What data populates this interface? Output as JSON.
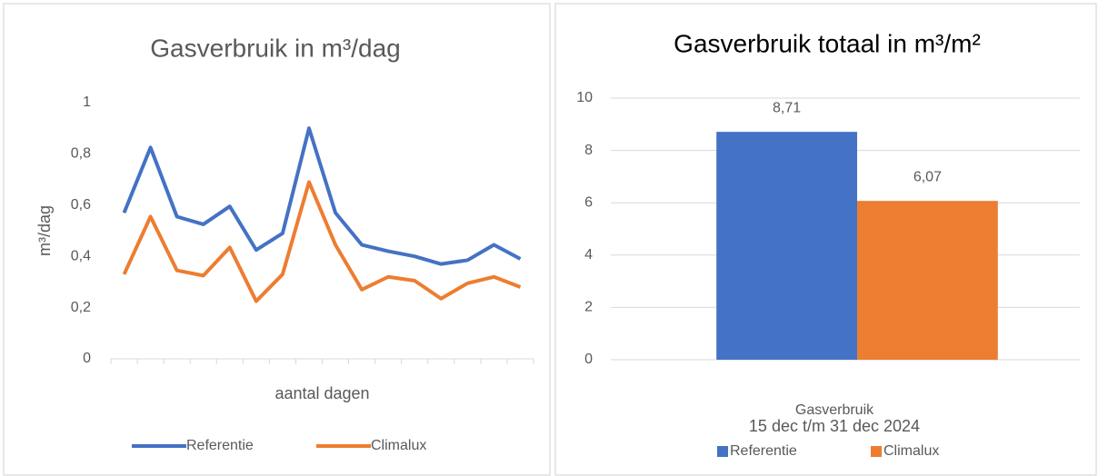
{
  "chart_data": [
    {
      "type": "line",
      "title": "Gasverbruik in m³/dag",
      "x_label": "aantal dagen",
      "y_label": "m³/dag",
      "categories": [
        null,
        null,
        null,
        null,
        null,
        null,
        null,
        null,
        null,
        null,
        null,
        null,
        null,
        null,
        null,
        null
      ],
      "series": [
        {
          "name": "Referentie",
          "color": "#4472c4",
          "values": [
            0.57,
            0.825,
            0.555,
            0.525,
            0.595,
            0.425,
            0.49,
            0.9,
            0.57,
            0.445,
            0.42,
            0.4,
            0.37,
            0.385,
            0.445,
            0.39
          ]
        },
        {
          "name": "Climalux",
          "color": "#ed7d31",
          "values": [
            0.33,
            0.555,
            0.345,
            0.325,
            0.435,
            0.225,
            0.33,
            0.69,
            0.445,
            0.27,
            0.32,
            0.305,
            0.235,
            0.295,
            0.32,
            0.28
          ]
        }
      ],
      "ylim": [
        0,
        1
      ],
      "yticks": [
        0,
        {
          "value": 0.2,
          "label": "0,2"
        },
        {
          "value": 0.4,
          "label": "0,4"
        },
        {
          "value": 0.6,
          "label": "0,6"
        },
        {
          "value": 0.8,
          "label": "0,8"
        },
        1
      ],
      "grid": false,
      "legend": "bottom"
    },
    {
      "type": "bar",
      "title": "Gasverbruik totaal in m³/m²",
      "x_label": "15 dec t/m 31 dec 2024",
      "categories": [
        "Gasverbruik"
      ],
      "series": [
        {
          "name": "Referentie",
          "color": "#4472c4",
          "values": [
            8.71
          ],
          "value_labels": [
            "8,71"
          ]
        },
        {
          "name": "Climalux",
          "color": "#ed7d31",
          "values": [
            6.07
          ],
          "value_labels": [
            "6,07"
          ]
        }
      ],
      "ylim": [
        0,
        10
      ],
      "yticks": [
        0,
        2,
        4,
        6,
        8,
        10
      ],
      "grid": true,
      "legend": "bottom"
    }
  ]
}
